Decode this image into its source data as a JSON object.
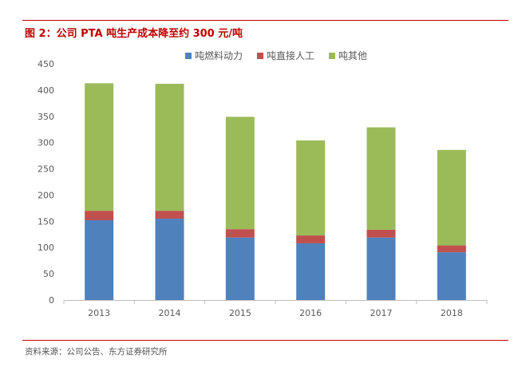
{
  "figure": {
    "title": "图 2：公司 PTA 吨生产成本降至约 300 元/吨",
    "source": "资料来源：公司公告、东方证券研究所"
  },
  "colors": {
    "accent": "#c00000",
    "series": [
      "#4f81bd",
      "#c0504d",
      "#9bbb59"
    ],
    "axis": "#bfbfbf"
  },
  "chart_data": {
    "type": "bar",
    "stacked": true,
    "title": "",
    "xlabel": "",
    "ylabel": "",
    "categories": [
      "2013",
      "2014",
      "2015",
      "2016",
      "2017",
      "2018"
    ],
    "series": [
      {
        "name": "吨燃料动力",
        "values": [
          152,
          155,
          119,
          108,
          119,
          91
        ]
      },
      {
        "name": "吨直接人工",
        "values": [
          18,
          15,
          16,
          15,
          15,
          13
        ]
      },
      {
        "name": "吨其他",
        "values": [
          243,
          242,
          214,
          181,
          195,
          182
        ]
      }
    ],
    "ylim": [
      0,
      450
    ],
    "yticks": [
      0,
      50,
      100,
      150,
      200,
      250,
      300,
      350,
      400,
      450
    ],
    "grid": false,
    "legend": "top"
  }
}
